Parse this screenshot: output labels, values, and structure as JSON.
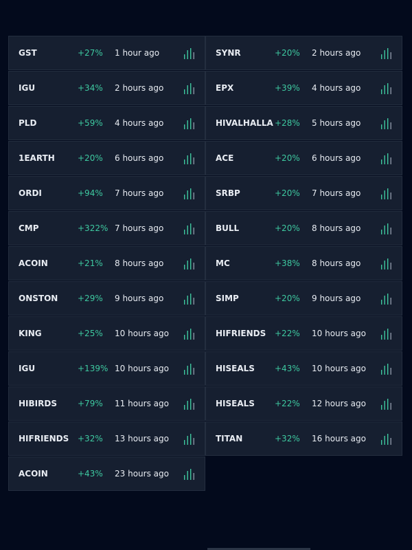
{
  "colors": {
    "background": "#030a1c",
    "row_bg": "#161f30",
    "positive": "#3ec9a0",
    "text": "#e8ecf2"
  },
  "icon": "bar-chart-icon",
  "columns": [
    {
      "items": [
        {
          "symbol": "GST",
          "change": "+27%",
          "time": "1 hour ago"
        },
        {
          "symbol": "IGU",
          "change": "+34%",
          "time": "2 hours ago"
        },
        {
          "symbol": "PLD",
          "change": "+59%",
          "time": "4 hours ago"
        },
        {
          "symbol": "1EARTH",
          "change": "+20%",
          "time": "6 hours ago"
        },
        {
          "symbol": "ORDI",
          "change": "+94%",
          "time": "7 hours ago"
        },
        {
          "symbol": "CMP",
          "change": "+322%",
          "time": "7 hours ago"
        },
        {
          "symbol": "ACOIN",
          "change": "+21%",
          "time": "8 hours ago"
        },
        {
          "symbol": "ONSTON",
          "change": "+29%",
          "time": "9 hours ago"
        },
        {
          "symbol": "KING",
          "change": "+25%",
          "time": "10 hours ago"
        },
        {
          "symbol": "IGU",
          "change": "+139%",
          "time": "10 hours ago"
        },
        {
          "symbol": "HIBIRDS",
          "change": "+79%",
          "time": "11 hours ago"
        },
        {
          "symbol": "HIFRIENDS",
          "change": "+32%",
          "time": "13 hours ago"
        },
        {
          "symbol": "ACOIN",
          "change": "+43%",
          "time": "23 hours ago"
        }
      ]
    },
    {
      "items": [
        {
          "symbol": "SYNR",
          "change": "+20%",
          "time": "2 hours ago"
        },
        {
          "symbol": "EPX",
          "change": "+39%",
          "time": "4 hours ago"
        },
        {
          "symbol": "HIVALHALLA",
          "change": "+28%",
          "time": "5 hours ago"
        },
        {
          "symbol": "ACE",
          "change": "+20%",
          "time": "6 hours ago"
        },
        {
          "symbol": "SRBP",
          "change": "+20%",
          "time": "7 hours ago"
        },
        {
          "symbol": "BULL",
          "change": "+20%",
          "time": "8 hours ago"
        },
        {
          "symbol": "MC",
          "change": "+38%",
          "time": "8 hours ago"
        },
        {
          "symbol": "SIMP",
          "change": "+20%",
          "time": "9 hours ago"
        },
        {
          "symbol": "HIFRIENDS",
          "change": "+22%",
          "time": "10 hours ago"
        },
        {
          "symbol": "HISEALS",
          "change": "+43%",
          "time": "10 hours ago"
        },
        {
          "symbol": "HISEALS",
          "change": "+22%",
          "time": "12 hours ago"
        },
        {
          "symbol": "TITAN",
          "change": "+32%",
          "time": "16 hours ago"
        }
      ]
    }
  ]
}
